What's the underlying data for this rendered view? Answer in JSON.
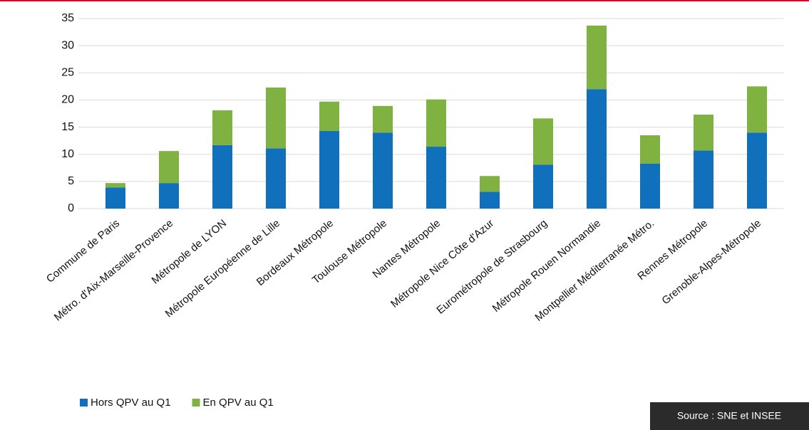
{
  "chart_data": {
    "type": "stacked_bar",
    "categories": [
      "Commune de Paris",
      "Métro. d'Aix-Marseille-Provence",
      "Métropole de LYON",
      "Métropole Européenne de Lille",
      "Bordeaux Métropole",
      "Toulouse Métropole",
      "Nantes Métropole",
      "Métropole Nice Côte d'Azur",
      "Eurométropole de Strasbourg",
      "Métropole Rouen Normandie",
      "Montpellier Méditerranée Métro.",
      "Rennes Métropole",
      "Grenoble-Alpes-Métropole"
    ],
    "series": [
      {
        "name": "Hors QPV au Q1",
        "color": "#1170bb",
        "values": [
          3.9,
          4.7,
          11.7,
          11.1,
          14.3,
          14.0,
          11.4,
          3.1,
          8.1,
          22.0,
          8.3,
          10.7,
          14.0
        ]
      },
      {
        "name": "En QPV au Q1",
        "color": "#7fb241",
        "values": [
          0.8,
          5.9,
          6.4,
          11.2,
          5.4,
          4.9,
          8.7,
          2.9,
          8.5,
          11.7,
          5.2,
          6.6,
          8.5
        ]
      }
    ],
    "ylim": [
      0,
      35
    ],
    "yticks": [
      0,
      5,
      10,
      15,
      20,
      25,
      30,
      35
    ],
    "grid": true,
    "legend": "bottom-left",
    "source": "Source : SNE et INSEE"
  }
}
